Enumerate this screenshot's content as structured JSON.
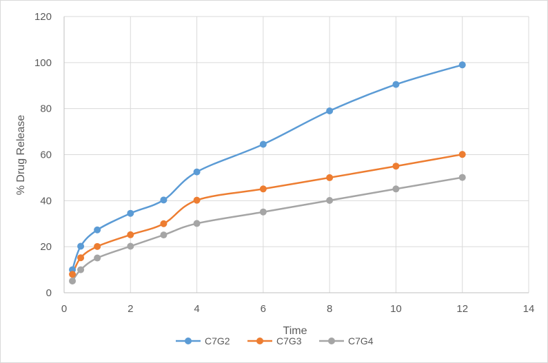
{
  "chart_data": {
    "type": "line",
    "xlabel": "Time",
    "ylabel": "% Drug Release",
    "xlim": [
      0,
      14
    ],
    "ylim": [
      0,
      120
    ],
    "x_ticks": [
      0,
      2,
      4,
      6,
      8,
      10,
      12,
      14
    ],
    "y_ticks": [
      0,
      20,
      40,
      60,
      80,
      100,
      120
    ],
    "grid": "vertical and horizontal major gridlines",
    "legend_position": "bottom",
    "smooth_lines": true,
    "markers": "circle",
    "x": [
      0.25,
      0.5,
      1,
      2,
      3,
      4,
      6,
      8,
      10,
      12
    ],
    "series": [
      {
        "name": "C7G2",
        "color": "#5b9bd5",
        "values": [
          10,
          20.2,
          27.3,
          34.5,
          40.3,
          52.5,
          64.5,
          79,
          90.5,
          99
        ]
      },
      {
        "name": "C7G3",
        "color": "#ed7d31",
        "values": [
          8,
          15.2,
          20.1,
          25.2,
          30,
          40.2,
          45.1,
          50,
          55,
          60.1
        ]
      },
      {
        "name": "C7G4",
        "color": "#a5a5a5",
        "values": [
          5.1,
          10,
          15.1,
          20.2,
          25.1,
          30.1,
          35.1,
          40.1,
          45.1,
          50.1
        ]
      }
    ]
  }
}
